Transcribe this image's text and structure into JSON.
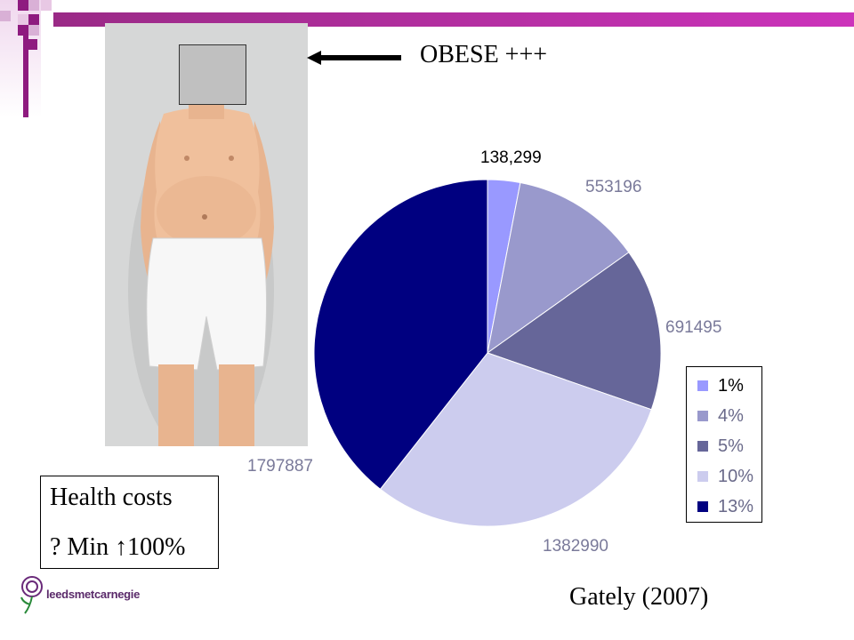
{
  "annotation": {
    "obese_label": "OBESE +++",
    "arrow_icon": "left-arrow-icon"
  },
  "health_box": {
    "line1": "Health costs",
    "line2": "? Min ↑100%"
  },
  "citation": "Gately (2007)",
  "logo": {
    "text": "leedsmetcarnegie",
    "icon": "flower-logo-icon"
  },
  "colors": {
    "accent_purple": "#8e1b7f",
    "slice_1": "#9999ff",
    "slice_2": "#9999cc",
    "slice_3": "#666699",
    "slice_4": "#ccccee",
    "slice_5": "#000080"
  },
  "chart_data": {
    "type": "pie",
    "title": "",
    "categories": [
      "1%",
      "4%",
      "5%",
      "10%",
      "13%"
    ],
    "values": [
      138299,
      553196,
      691495,
      1382990,
      1797887
    ],
    "data_labels": [
      "138,299",
      "553196",
      "691495",
      "1382990",
      "1797887"
    ],
    "legend": {
      "entries": [
        "1%",
        "4%",
        "5%",
        "10%",
        "13%"
      ],
      "placement": "right"
    }
  }
}
